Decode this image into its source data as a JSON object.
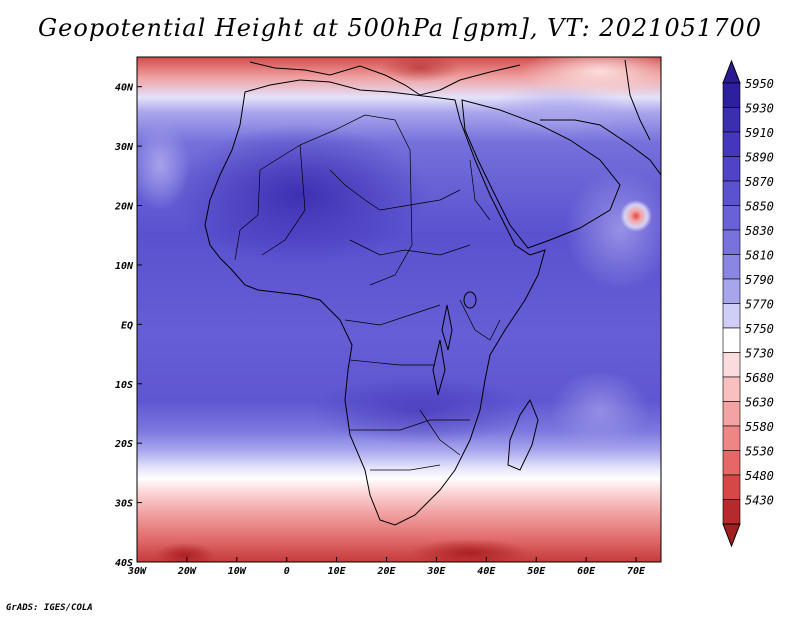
{
  "title": "Geopotential Height at 500hPa [gpm], VT: 2021051700",
  "credit": "GrADS: IGES/COLA",
  "map": {
    "lon_range": [
      -30,
      75
    ],
    "lat_range": [
      -40,
      45
    ],
    "lon_ticks": [
      {
        "lon": -30,
        "label": "30W"
      },
      {
        "lon": -20,
        "label": "20W"
      },
      {
        "lon": -10,
        "label": "10W"
      },
      {
        "lon": 0,
        "label": "0"
      },
      {
        "lon": 10,
        "label": "10E"
      },
      {
        "lon": 20,
        "label": "20E"
      },
      {
        "lon": 30,
        "label": "30E"
      },
      {
        "lon": 40,
        "label": "40E"
      },
      {
        "lon": 50,
        "label": "50E"
      },
      {
        "lon": 60,
        "label": "60E"
      },
      {
        "lon": 70,
        "label": "70E"
      }
    ],
    "lat_ticks": [
      {
        "lat": 40,
        "label": "40N"
      },
      {
        "lat": 30,
        "label": "30N"
      },
      {
        "lat": 20,
        "label": "20N"
      },
      {
        "lat": 10,
        "label": "10N"
      },
      {
        "lat": 0,
        "label": "EQ"
      },
      {
        "lat": -10,
        "label": "10S"
      },
      {
        "lat": -20,
        "label": "20S"
      },
      {
        "lat": -30,
        "label": "30S"
      },
      {
        "lat": -40,
        "label": "40S"
      }
    ]
  },
  "colorbar": {
    "labels": [
      "5950",
      "5930",
      "5910",
      "5890",
      "5870",
      "5850",
      "5830",
      "5810",
      "5790",
      "5770",
      "5750",
      "5730",
      "5680",
      "5630",
      "5580",
      "5530",
      "5480",
      "5430"
    ],
    "colors": [
      "#2e1f9e",
      "#3a2fae",
      "#4536bd",
      "#4f44c7",
      "#5b52cf",
      "#6962d6",
      "#7872dc",
      "#8a86e3",
      "#a7a5ec",
      "#cfcef6",
      "#ffffff",
      "#fbdcdc",
      "#f8c0c0",
      "#f4a3a3",
      "#ef8686",
      "#e56767",
      "#d54848",
      "#b52a2a"
    ],
    "top_arrow_color": "#2a1a93",
    "bottom_arrow_color": "#a11f1f"
  }
}
